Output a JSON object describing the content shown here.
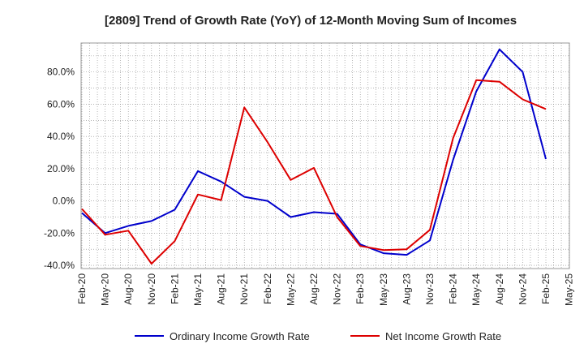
{
  "chart_data": {
    "type": "line",
    "title": "[2809]  Trend of Growth Rate (YoY) of 12-Month Moving Sum of Incomes",
    "xlabel": "",
    "ylabel": "",
    "ylim": [
      -42,
      98
    ],
    "yticks": [
      -40,
      -20,
      0,
      20,
      40,
      60,
      80
    ],
    "ytick_labels": [
      "-40.0%",
      "-20.0%",
      "0.0%",
      "20.0%",
      "40.0%",
      "60.0%",
      "80.0%"
    ],
    "x_labels": [
      "Feb-20",
      "May-20",
      "Aug-20",
      "Nov-20",
      "Feb-21",
      "May-21",
      "Aug-21",
      "Nov-21",
      "Feb-22",
      "May-22",
      "Aug-22",
      "Nov-22",
      "Feb-23",
      "May-23",
      "Aug-23",
      "Nov-23",
      "Feb-24",
      "May-24",
      "Aug-24",
      "Nov-24",
      "Feb-25",
      "May-25"
    ],
    "grid": true,
    "legend_position": "bottom",
    "series": [
      {
        "name": "Ordinary Income Growth Rate",
        "color": "#0000cc",
        "values": [
          -7.5,
          -20.0,
          -15.5,
          -12.5,
          -5.5,
          18.5,
          12.0,
          2.5,
          0.0,
          -10.0,
          -7.0,
          -8.0,
          -27.0,
          -32.5,
          -33.5,
          -24.5,
          25.5,
          68.0,
          94.0,
          80.0,
          26.0
        ]
      },
      {
        "name": "Net Income Growth Rate",
        "color": "#dd0000",
        "values": [
          -5.0,
          -21.0,
          -18.5,
          -39.0,
          -25.0,
          4.0,
          0.5,
          58.0,
          36.5,
          13.0,
          20.5,
          -10.0,
          -28.0,
          -30.5,
          -30.0,
          -18.0,
          39.0,
          75.0,
          74.0,
          63.0,
          57.0
        ]
      }
    ]
  }
}
